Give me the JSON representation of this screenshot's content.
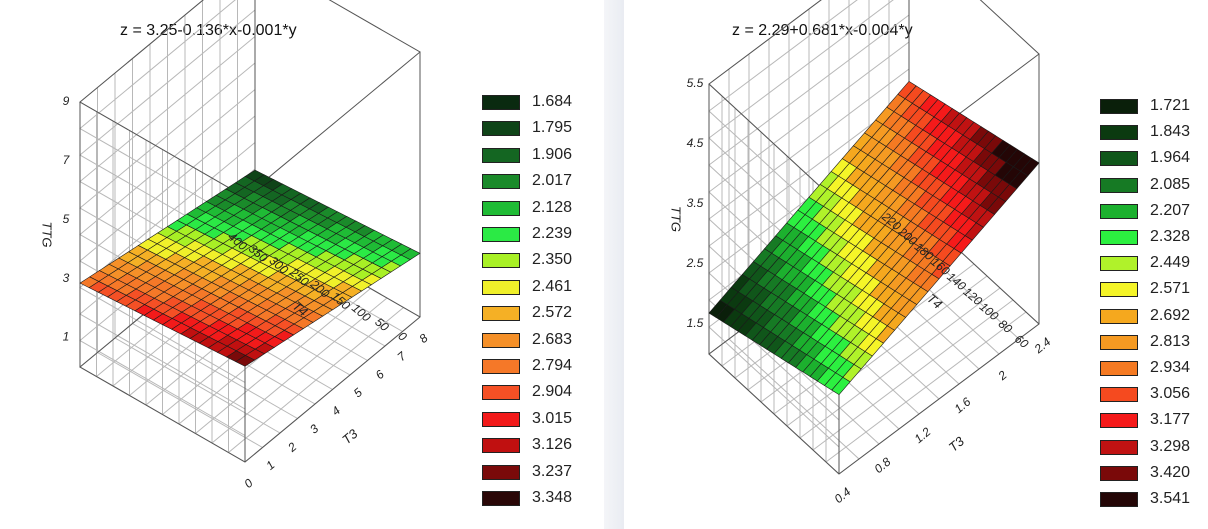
{
  "chart_data": [
    {
      "type": "surface3d",
      "title": "z = 3.25-0.136*x-0.001*y",
      "xlabel": "T3",
      "ylabel": "T4",
      "zlabel": "TTG",
      "x_ticks": [
        "0",
        "1",
        "2",
        "3",
        "4",
        "5",
        "6",
        "7",
        "8"
      ],
      "y_ticks": [
        "0",
        "50",
        "100",
        "150",
        "200",
        "250",
        "300",
        "350",
        "400"
      ],
      "z_ticks": [
        "1",
        "3",
        "5",
        "7",
        "9"
      ],
      "xlim": [
        0,
        8
      ],
      "ylim": [
        0,
        400
      ],
      "zlim": [
        0,
        9
      ],
      "surface": {
        "intercept": 3.25,
        "x_coef": -0.136,
        "y_coef": -0.001
      },
      "legend": {
        "placement": "right",
        "items": [
          {
            "label": "1.684",
            "color": "#0a2a10"
          },
          {
            "label": "1.795",
            "color": "#0f4418"
          },
          {
            "label": "1.906",
            "color": "#146622"
          },
          {
            "label": "2.017",
            "color": "#1a8a2a"
          },
          {
            "label": "2.128",
            "color": "#1fbb35"
          },
          {
            "label": "2.239",
            "color": "#2bea45"
          },
          {
            "label": "2.350",
            "color": "#a8f025"
          },
          {
            "label": "2.461",
            "color": "#f0f02a"
          },
          {
            "label": "2.572",
            "color": "#f5b025"
          },
          {
            "label": "2.683",
            "color": "#f59028"
          },
          {
            "label": "2.794",
            "color": "#f57828"
          },
          {
            "label": "2.904",
            "color": "#f55025"
          },
          {
            "label": "3.015",
            "color": "#f21a1a"
          },
          {
            "label": "3.126",
            "color": "#c01010"
          },
          {
            "label": "3.237",
            "color": "#7a0a0a"
          },
          {
            "label": "3.348",
            "color": "#2a0707"
          }
        ]
      }
    },
    {
      "type": "surface3d",
      "title": "z = 2.29+0.681*x-0.004*y",
      "xlabel": "T3",
      "ylabel": "T4",
      "zlabel": "TTG",
      "x_ticks": [
        "0.4",
        "0.8",
        "1.2",
        "1.6",
        "2",
        "2.4"
      ],
      "y_ticks": [
        "60",
        "80",
        "100",
        "120",
        "140",
        "160",
        "180",
        "200",
        "220"
      ],
      "z_ticks": [
        "1.5",
        "2.5",
        "3.5",
        "4.5",
        "5.5"
      ],
      "xlim": [
        0.4,
        2.4
      ],
      "ylim": [
        60,
        220
      ],
      "zlim": [
        1.0,
        5.5
      ],
      "surface": {
        "intercept": 2.29,
        "x_coef": 0.681,
        "y_coef": -0.004
      },
      "legend": {
        "placement": "right",
        "items": [
          {
            "label": "1.721",
            "color": "#0a1f0a"
          },
          {
            "label": "1.843",
            "color": "#0b3a10"
          },
          {
            "label": "1.964",
            "color": "#10561a"
          },
          {
            "label": "2.085",
            "color": "#167a24"
          },
          {
            "label": "2.207",
            "color": "#1cb02e"
          },
          {
            "label": "2.328",
            "color": "#2cf040"
          },
          {
            "label": "2.449",
            "color": "#b0f22a"
          },
          {
            "label": "2.571",
            "color": "#f5f528"
          },
          {
            "label": "2.692",
            "color": "#f5a81e"
          },
          {
            "label": "2.813",
            "color": "#f59a22"
          },
          {
            "label": "2.934",
            "color": "#f57a22"
          },
          {
            "label": "3.056",
            "color": "#f54a1f"
          },
          {
            "label": "3.177",
            "color": "#f51a1a"
          },
          {
            "label": "3.298",
            "color": "#c01212"
          },
          {
            "label": "3.420",
            "color": "#7a0909"
          },
          {
            "label": "3.541",
            "color": "#240606"
          }
        ]
      }
    }
  ]
}
